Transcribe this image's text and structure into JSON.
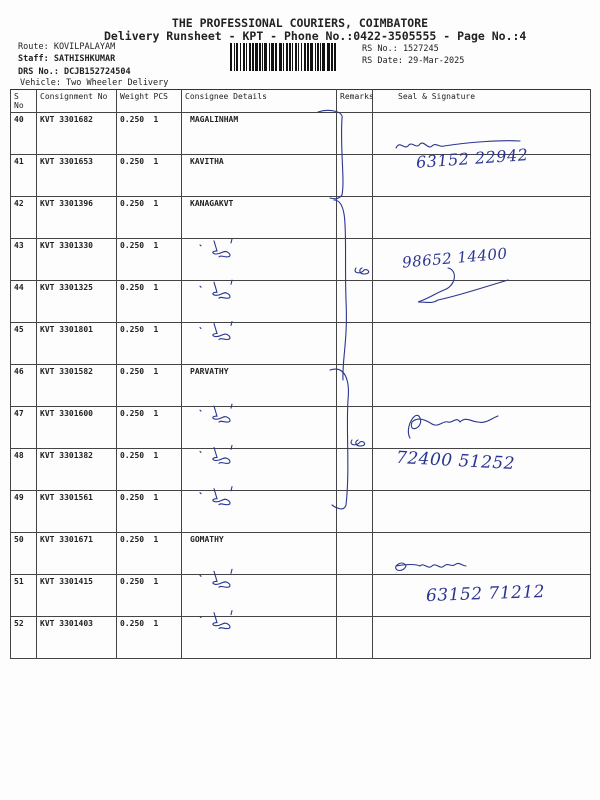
{
  "header": {
    "title": "THE PROFESSIONAL COURIERS, COIMBATORE",
    "subtitle": "Delivery Runsheet - KPT - Phone No.:0422-3505555 - Page No.:4",
    "route": "Route: KOVILPALAYAM",
    "staff": "Staff: SATHISHKUMAR",
    "drs_no": "DRS No.: DCJB152724504",
    "vehicle": "Vehicle: Two Wheeler Delivery",
    "rs_no": "RS No.: 1527245",
    "rs_date": "RS Date: 29-Mar-2025"
  },
  "table": {
    "columns": [
      "S No",
      "Consignment No",
      "Weight",
      "PCS",
      "Consignee Details",
      "Remarks",
      "Seal & Signature"
    ],
    "rows": [
      {
        "sno": "40",
        "cn": "KVT 3301682",
        "weight": "0.250",
        "pcs": "1",
        "consignee": "MAGALINHAM"
      },
      {
        "sno": "41",
        "cn": "KVT 3301653",
        "weight": "0.250",
        "pcs": "1",
        "consignee": "KAVITHA"
      },
      {
        "sno": "42",
        "cn": "KVT 3301396",
        "weight": "0.250",
        "pcs": "1",
        "consignee": "KANAGAKVT"
      },
      {
        "sno": "43",
        "cn": "KVT 3301330",
        "weight": "0.250",
        "pcs": "1",
        "consignee": ""
      },
      {
        "sno": "44",
        "cn": "KVT 3301325",
        "weight": "0.250",
        "pcs": "1",
        "consignee": ""
      },
      {
        "sno": "45",
        "cn": "KVT 3301801",
        "weight": "0.250",
        "pcs": "1",
        "consignee": ""
      },
      {
        "sno": "46",
        "cn": "KVT 3301582",
        "weight": "0.250",
        "pcs": "1",
        "consignee": "PARVATHY"
      },
      {
        "sno": "47",
        "cn": "KVT 3301600",
        "weight": "0.250",
        "pcs": "1",
        "consignee": ""
      },
      {
        "sno": "48",
        "cn": "KVT 3301382",
        "weight": "0.250",
        "pcs": "1",
        "consignee": ""
      },
      {
        "sno": "49",
        "cn": "KVT 3301561",
        "weight": "0.250",
        "pcs": "1",
        "consignee": ""
      },
      {
        "sno": "50",
        "cn": "KVT 3301671",
        "weight": "0.250",
        "pcs": "1",
        "consignee": "GOMATHY"
      },
      {
        "sno": "51",
        "cn": "KVT 3301415",
        "weight": "0.250",
        "pcs": "1",
        "consignee": ""
      },
      {
        "sno": "52",
        "cn": "KVT 3301403",
        "weight": "0.250",
        "pcs": "1",
        "consignee": ""
      }
    ]
  },
  "colors": {
    "ink": "#2a3590",
    "text": "#222222"
  },
  "handwriting": {
    "note": "handwritten signatures and phone numbers reproduced as pictures",
    "signature_texts": [
      "63152 22942",
      "98652 14400",
      "72400 51252",
      "63152 71212"
    ]
  }
}
